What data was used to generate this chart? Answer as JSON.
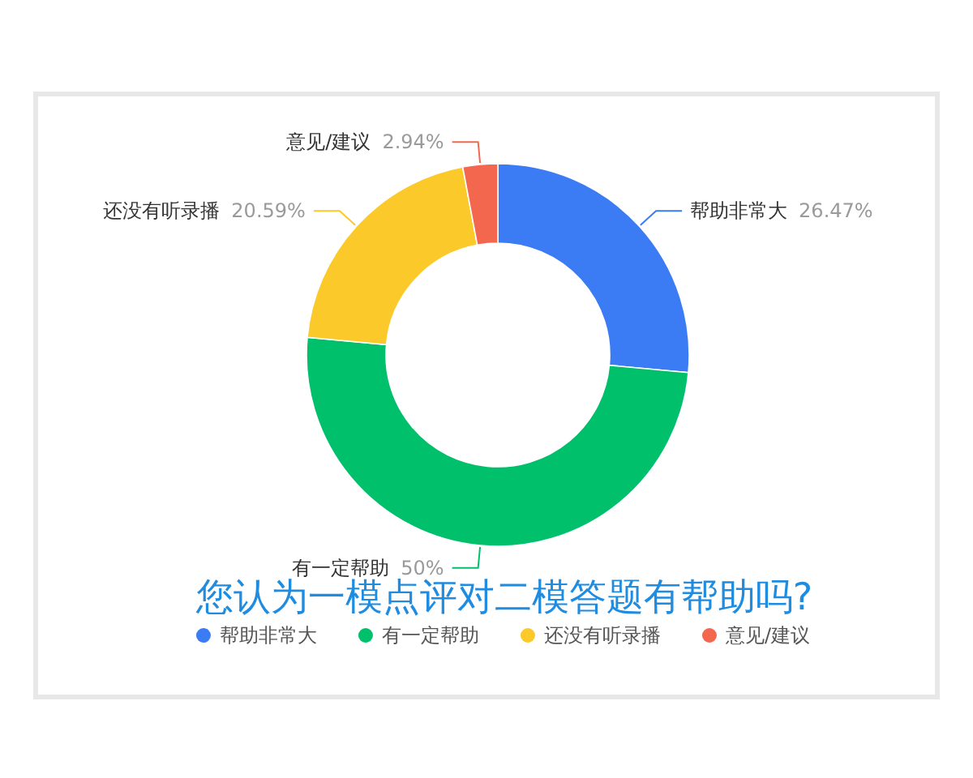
{
  "chart_data": {
    "type": "donut",
    "title": "您认为一模点评对二模答题有帮助吗?",
    "categories": [
      "帮助非常大",
      "有一定帮助",
      "还没有听录播",
      "意见/建议"
    ],
    "values": [
      26.47,
      50,
      20.59,
      2.94
    ],
    "colors": [
      "#3b7cf5",
      "#00c06c",
      "#fcc92a",
      "#f4674f"
    ],
    "value_labels": [
      "26.47%",
      "50%",
      "20.59%",
      "2.94%"
    ],
    "legend": "bottom"
  }
}
